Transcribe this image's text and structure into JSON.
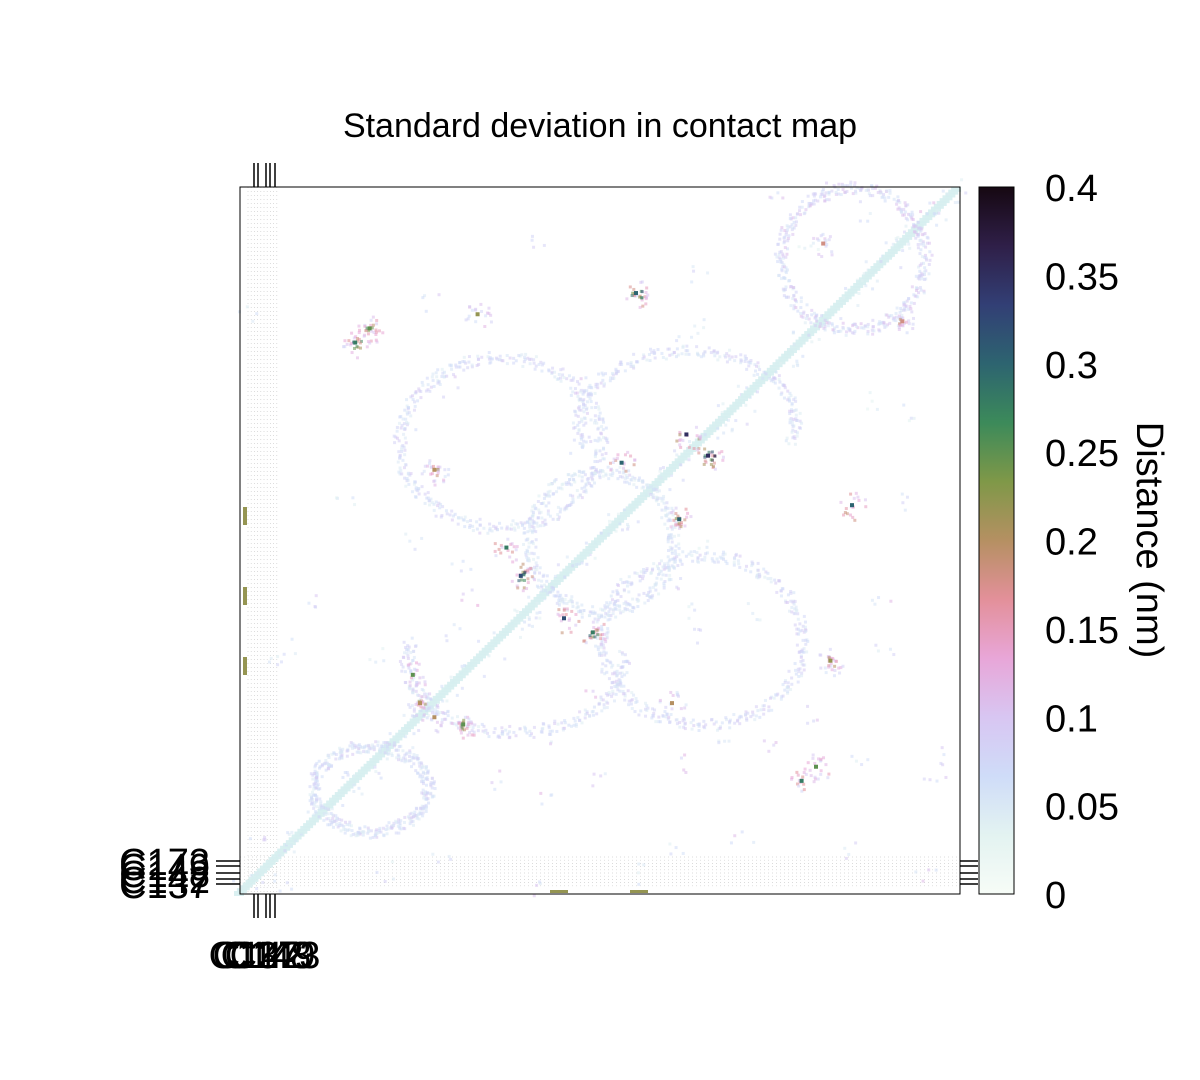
{
  "chart_data": {
    "type": "heatmap",
    "title": "Standard deviation in contact map",
    "colorbar": {
      "label": "Distance (nm)",
      "ticks": [
        "0",
        "0.05",
        "0.1",
        "0.15",
        "0.2",
        "0.25",
        "0.3",
        "0.35",
        "0.4"
      ],
      "range": [
        0,
        0.4
      ],
      "stops": [
        "#f7fcf7",
        "#e3f3f1",
        "#cfdcf8",
        "#d8c6f2",
        "#e8a6d8",
        "#e3909a",
        "#b59062",
        "#7f9848",
        "#3c8a5a",
        "#2d6470",
        "#323f75",
        "#2f1f48",
        "#160812"
      ]
    },
    "x_tick_labels": [
      "C137",
      "C142",
      "C148",
      "C149",
      "C173"
    ],
    "y_tick_labels": [
      "C173",
      "C149",
      "C148",
      "C142",
      "C137"
    ],
    "diagonal": "near-zero values along the main diagonal",
    "hotspots": [
      {
        "row": 0.2,
        "col": 0.18,
        "value": 0.25
      },
      {
        "row": 0.22,
        "col": 0.16,
        "value": 0.28
      },
      {
        "row": 0.73,
        "col": 0.25,
        "value": 0.2
      },
      {
        "row": 0.67,
        "col": 0.82,
        "value": 0.22
      },
      {
        "row": 0.15,
        "col": 0.55,
        "value": 0.3
      },
      {
        "row": 0.38,
        "col": 0.65,
        "value": 0.35
      },
      {
        "row": 0.55,
        "col": 0.39,
        "value": 0.32
      },
      {
        "row": 0.47,
        "col": 0.61,
        "value": 0.3
      },
      {
        "row": 0.63,
        "col": 0.49,
        "value": 0.28
      },
      {
        "row": 0.4,
        "col": 0.27,
        "value": 0.2
      },
      {
        "row": 0.76,
        "col": 0.31,
        "value": 0.25
      },
      {
        "row": 0.19,
        "col": 0.92,
        "value": 0.18
      }
    ]
  }
}
